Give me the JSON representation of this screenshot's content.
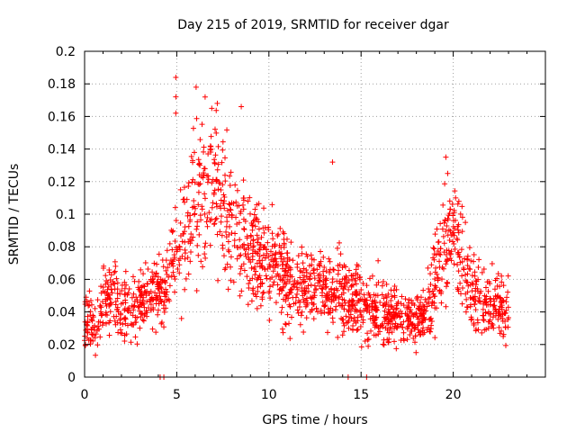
{
  "chart_data": {
    "type": "scatter",
    "title": "Day 215 of 2019, SRMTID for receiver dgar",
    "xlabel": "GPS time / hours",
    "ylabel": "SRMTID / TECUs",
    "xlim": [
      0,
      25
    ],
    "ylim": [
      0,
      0.2
    ],
    "x_ticks": [
      0,
      5,
      10,
      15,
      20
    ],
    "x_tick_labels": [
      "0",
      "5",
      "10",
      "15",
      "20"
    ],
    "y_ticks": [
      0,
      0.02,
      0.04,
      0.06,
      0.08,
      0.1,
      0.12,
      0.14,
      0.16,
      0.18,
      0.2
    ],
    "y_tick_labels": [
      "0",
      "0.02",
      "0.04",
      "0.06",
      "0.08",
      "0.1",
      "0.12",
      "0.14",
      "0.16",
      "0.18",
      "0.2"
    ],
    "grid": true,
    "marker": "+",
    "color": "#ff0000",
    "series": [
      {
        "name": "SRMTID (dgar)",
        "trend": {
          "x": [
            0,
            0.5,
            1,
            1.5,
            2,
            2.5,
            3,
            3.5,
            4,
            4.5,
            5,
            5.3,
            5.6,
            6,
            6.5,
            7,
            7.5,
            8,
            8.5,
            9,
            10,
            11,
            12,
            13,
            14,
            15,
            16,
            17,
            18,
            18.5,
            19,
            19.5,
            20,
            20.5,
            21,
            22,
            23
          ],
          "y": [
            0.035,
            0.03,
            0.045,
            0.05,
            0.04,
            0.04,
            0.045,
            0.05,
            0.05,
            0.06,
            0.08,
            0.075,
            0.09,
            0.11,
            0.12,
            0.125,
            0.11,
            0.09,
            0.085,
            0.08,
            0.07,
            0.06,
            0.055,
            0.055,
            0.05,
            0.045,
            0.04,
            0.035,
            0.033,
            0.04,
            0.06,
            0.085,
            0.09,
            0.07,
            0.05,
            0.045,
            0.04
          ]
        },
        "spread": [
          0.012,
          0.012,
          0.014,
          0.014,
          0.012,
          0.012,
          0.014,
          0.014,
          0.015,
          0.016,
          0.022,
          0.02,
          0.025,
          0.028,
          0.03,
          0.03,
          0.028,
          0.025,
          0.022,
          0.02,
          0.018,
          0.016,
          0.014,
          0.014,
          0.014,
          0.013,
          0.012,
          0.011,
          0.01,
          0.012,
          0.016,
          0.02,
          0.022,
          0.018,
          0.014,
          0.012,
          0.012
        ],
        "n_points": 1800,
        "peaks": [
          {
            "x": 4.95,
            "y": 0.184
          },
          {
            "x": 4.95,
            "y": 0.172
          },
          {
            "x": 4.95,
            "y": 0.162
          },
          {
            "x": 6.05,
            "y": 0.178
          },
          {
            "x": 6.9,
            "y": 0.165
          },
          {
            "x": 7.2,
            "y": 0.168
          },
          {
            "x": 8.5,
            "y": 0.166
          },
          {
            "x": 13.45,
            "y": 0.132
          },
          {
            "x": 19.6,
            "y": 0.135
          },
          {
            "x": 19.7,
            "y": 0.125
          }
        ],
        "zeros": [
          {
            "x": 4.1,
            "y": 0
          },
          {
            "x": 4.3,
            "y": 0
          },
          {
            "x": 14.3,
            "y": 0
          },
          {
            "x": 15.3,
            "y": 0
          }
        ]
      }
    ]
  }
}
